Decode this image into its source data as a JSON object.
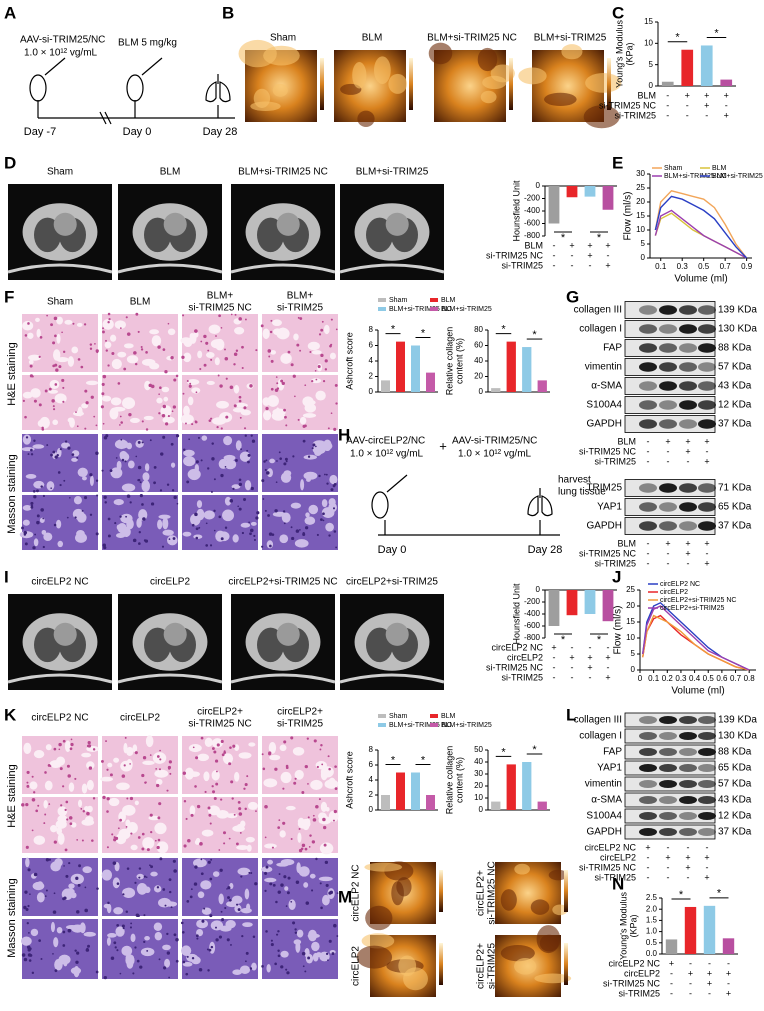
{
  "panel_labels": [
    "A",
    "B",
    "C",
    "D",
    "E",
    "F",
    "G",
    "H",
    "I",
    "J",
    "K",
    "L",
    "M",
    "N"
  ],
  "A": {
    "vector": "AAV-si-TRIM25/NC",
    "dose": "1.0 × 10¹² vg/mL",
    "drug": "BLM 5 mg/kg",
    "days": [
      "Day -7",
      "Day 0",
      "Day 28"
    ]
  },
  "B": {
    "groups": [
      "Sham",
      "BLM",
      "BLM+si-TRIM25 NC",
      "BLM+si-TRIM25"
    ]
  },
  "D": {
    "groups": [
      "Sham",
      "BLM",
      "BLM+si-TRIM25 NC",
      "BLM+si-TRIM25"
    ]
  },
  "F": {
    "columns": [
      [
        "Sham"
      ],
      [
        "BLM"
      ],
      [
        "BLM+",
        "si-TRIM25 NC"
      ],
      [
        "BLM+",
        "si-TRIM25"
      ]
    ],
    "rows": [
      "H&E staining",
      "Masson staining"
    ]
  },
  "H": {
    "vector1": "AAV-circELP2/NC",
    "plus": "+",
    "vector2": "AAV-si-TRIM25/NC",
    "dose1": "1.0 × 10¹² vg/mL",
    "dose2": "1.0 × 10¹² vg/mL",
    "harvest": [
      "harvest",
      "lung tissue"
    ],
    "days": [
      "Day 0",
      "Day 28"
    ]
  },
  "I": {
    "groups": [
      "circELP2 NC",
      "circELP2",
      "circELP2+si-TRIM25 NC",
      "circELP2+si-TRIM25"
    ]
  },
  "K": {
    "columns": [
      [
        "circELP2 NC"
      ],
      [
        "circELP2"
      ],
      [
        "circELP2+",
        "si-TRIM25 NC"
      ],
      [
        "circELP2+",
        "si-TRIM25"
      ]
    ],
    "rows": [
      "H&E staining",
      "Masson staining"
    ]
  },
  "M": {
    "labels": [
      [
        "circELP2 NC"
      ],
      [
        "circELP2"
      ],
      [
        "circELP2+",
        "si-TRIM25 NC"
      ],
      [
        "circELP2+",
        "si-TRIM25"
      ]
    ]
  },
  "charts": {
    "C": {
      "type": "bar",
      "ylabel": [
        "Young's Modulus",
        "(KPa)"
      ],
      "values": [
        1,
        8.5,
        9.5,
        1.5
      ],
      "colors": [
        "#9e9e9e",
        "#e8262a",
        "#8ecae6",
        "#b84fa0"
      ],
      "ylim": [
        0,
        15
      ],
      "yticks": [
        0,
        5,
        10,
        15
      ],
      "significance": [
        "*",
        "*"
      ],
      "conditions": [
        {
          "name": "BLM",
          "marks": [
            "-",
            "+",
            "+",
            "+"
          ]
        },
        {
          "name": "si-TRIM25 NC",
          "marks": [
            "-",
            "-",
            "+",
            "-"
          ]
        },
        {
          "name": "si-TRIM25",
          "marks": [
            "-",
            "-",
            "-",
            "+"
          ]
        }
      ]
    },
    "D": {
      "type": "bar",
      "ylabel": [
        "Hounsfield Unit"
      ],
      "values": [
        -600,
        -180,
        -170,
        -380
      ],
      "colors": [
        "#9e9e9e",
        "#e8262a",
        "#8ecae6",
        "#b84fa0"
      ],
      "ylim": [
        -800,
        0
      ],
      "yticks": [
        -800,
        -600,
        -400,
        -200,
        0
      ],
      "significance": [
        "*",
        "*"
      ],
      "conditions": [
        {
          "name": "BLM",
          "marks": [
            "-",
            "+",
            "+",
            "+"
          ]
        },
        {
          "name": "si-TRIM25 NC",
          "marks": [
            "-",
            "-",
            "+",
            "-"
          ]
        },
        {
          "name": "si-TRIM25",
          "marks": [
            "-",
            "-",
            "-",
            "+"
          ]
        }
      ]
    },
    "E": {
      "type": "line",
      "ylabel": "Flow (ml/s)",
      "xlabel": "Volume (ml)",
      "xlim": [
        0,
        0.95
      ],
      "ylim": [
        0,
        30
      ],
      "xticks": [
        0.1,
        0.3,
        0.5,
        0.7,
        0.9
      ],
      "yticks": [
        0,
        5,
        10,
        15,
        20,
        25,
        30
      ],
      "x": [
        0.05,
        0.1,
        0.2,
        0.3,
        0.4,
        0.5,
        0.6,
        0.7,
        0.8,
        0.9
      ],
      "series": [
        {
          "name": "Sham",
          "color": "#f2a65a",
          "values": [
            10,
            20,
            24,
            23,
            22,
            21,
            18,
            12,
            5,
            0
          ]
        },
        {
          "name": "BLM",
          "color": "#d8c23a",
          "values": [
            8,
            14,
            16,
            13,
            10,
            8,
            6,
            4,
            2,
            0
          ]
        },
        {
          "name": "BLM+si-TRIM25 NC",
          "color": "#9b3fb0",
          "values": [
            8,
            15,
            17,
            14,
            11,
            8,
            6,
            4,
            2,
            0
          ]
        },
        {
          "name": "BLM+si-TRIM25",
          "color": "#2a3fc4",
          "values": [
            10,
            18,
            22,
            21,
            19,
            17,
            14,
            9,
            4,
            0
          ]
        }
      ]
    },
    "F1": {
      "type": "bar",
      "ylabel": [
        "Ashcroft score"
      ],
      "values": [
        1.5,
        6.5,
        6,
        2.5
      ],
      "colors": [
        "#bdbdbd",
        "#e8262a",
        "#8ecae6",
        "#c45aa8"
      ],
      "ylim": [
        0,
        8
      ],
      "yticks": [
        0,
        2,
        4,
        6,
        8
      ],
      "significance": [
        "*",
        "*"
      ],
      "legend": [
        "Sham",
        "BLM",
        "BLM+si-TRIM25 NC",
        "BLM+si-TRIM25"
      ]
    },
    "F2": {
      "type": "bar",
      "ylabel": [
        "Relative collagen",
        "content (%)"
      ],
      "values": [
        5,
        65,
        58,
        15
      ],
      "colors": [
        "#bdbdbd",
        "#e8262a",
        "#8ecae6",
        "#c45aa8"
      ],
      "ylim": [
        0,
        80
      ],
      "yticks": [
        0,
        20,
        40,
        60,
        80
      ],
      "significance": [
        "*",
        "*"
      ]
    },
    "I": {
      "type": "bar",
      "ylabel": [
        "Hounsfield Unit"
      ],
      "values": [
        -600,
        -420,
        -400,
        -520
      ],
      "colors": [
        "#9e9e9e",
        "#e8262a",
        "#8ecae6",
        "#b84fa0"
      ],
      "ylim": [
        -800,
        0
      ],
      "yticks": [
        -800,
        -600,
        -400,
        -200,
        0
      ],
      "significance": [
        "*",
        "*"
      ],
      "conditions": [
        {
          "name": "circELP2 NC",
          "marks": [
            "+",
            "-",
            "-",
            "-"
          ]
        },
        {
          "name": "circELP2",
          "marks": [
            "-",
            "+",
            "+",
            "+"
          ]
        },
        {
          "name": "si-TRIM25 NC",
          "marks": [
            "-",
            "-",
            "+",
            "-"
          ]
        },
        {
          "name": "si-TRIM25",
          "marks": [
            "-",
            "-",
            "-",
            "+"
          ]
        }
      ]
    },
    "J": {
      "type": "line",
      "ylabel": "Flow (ml/s)",
      "xlabel": "Volume (ml)",
      "xlim": [
        0,
        0.85
      ],
      "ylim": [
        0,
        25
      ],
      "xticks": [
        0,
        0.1,
        0.2,
        0.3,
        0.4,
        0.5,
        0.6,
        0.7,
        0.8
      ],
      "yticks": [
        0,
        5,
        10,
        15,
        20,
        25
      ],
      "x": [
        0.02,
        0.05,
        0.1,
        0.15,
        0.2,
        0.3,
        0.4,
        0.5,
        0.6,
        0.7,
        0.8
      ],
      "series": [
        {
          "name": "circELP2 NC",
          "color": "#2a3fc4",
          "values": [
            5,
            15,
            20,
            21,
            19,
            15,
            11,
            7,
            4,
            2,
            0
          ]
        },
        {
          "name": "circELP2",
          "color": "#e8262a",
          "values": [
            4,
            12,
            16,
            17,
            15,
            11,
            8,
            5,
            3,
            1,
            0
          ]
        },
        {
          "name": "circELP2+si-TRIM25 NC",
          "color": "#f29a3a",
          "values": [
            4,
            12,
            17,
            16,
            15,
            12,
            8,
            5,
            3,
            1,
            0
          ]
        },
        {
          "name": "circELP2+si-TRIM25",
          "color": "#9b3fb0",
          "values": [
            5,
            14,
            19,
            20,
            18,
            14,
            10,
            6,
            4,
            2,
            0
          ]
        }
      ]
    },
    "K1": {
      "type": "bar",
      "ylabel": [
        "Ashcroft score"
      ],
      "values": [
        2,
        5,
        5,
        2
      ],
      "colors": [
        "#bdbdbd",
        "#e8262a",
        "#8ecae6",
        "#c45aa8"
      ],
      "ylim": [
        0,
        8
      ],
      "yticks": [
        0,
        2,
        4,
        6,
        8
      ],
      "significance": [
        "*",
        "*"
      ],
      "legend": [
        "Sham",
        "BLM",
        "BLM+si-TRIM25 NC",
        "BLM+si-TRIM25"
      ]
    },
    "K2": {
      "type": "bar",
      "ylabel": [
        "Relative collagen",
        "content (%)"
      ],
      "values": [
        7,
        38,
        40,
        7
      ],
      "colors": [
        "#bdbdbd",
        "#e8262a",
        "#8ecae6",
        "#c45aa8"
      ],
      "ylim": [
        0,
        50
      ],
      "yticks": [
        0,
        10,
        20,
        30,
        40,
        50
      ],
      "significance": [
        "*",
        "*"
      ]
    },
    "N": {
      "type": "bar",
      "ylabel": [
        "Young's Modulus",
        "(KPa)"
      ],
      "values": [
        0.65,
        2.1,
        2.15,
        0.7
      ],
      "colors": [
        "#9e9e9e",
        "#e8262a",
        "#8ecae6",
        "#b84fa0"
      ],
      "ylim": [
        0,
        2.5
      ],
      "yticks": [
        {
          "value": 0,
          "label": "0.0"
        },
        {
          "value": 0.5,
          "label": "0.5"
        },
        {
          "value": 1,
          "label": "1.0"
        },
        {
          "value": 1.5,
          "label": "1.5"
        },
        {
          "value": 2,
          "label": "2.0"
        },
        {
          "value": 2.5,
          "label": "2.5"
        }
      ],
      "significance": [
        "*",
        "*"
      ],
      "conditions": [
        {
          "name": "circELP2 NC",
          "marks": [
            "+",
            "-",
            "-",
            "-"
          ]
        },
        {
          "name": "circELP2",
          "marks": [
            "-",
            "+",
            "+",
            "+"
          ]
        },
        {
          "name": "si-TRIM25 NC",
          "marks": [
            "-",
            "-",
            "+",
            "-"
          ]
        },
        {
          "name": "si-TRIM25",
          "marks": [
            "-",
            "-",
            "-",
            "+"
          ]
        }
      ]
    }
  },
  "blots": {
    "G1": {
      "rows": [
        {
          "protein": "collagen III",
          "size": "139 KDa"
        },
        {
          "protein": "collagen I",
          "size": "130 KDa"
        },
        {
          "protein": "FAP",
          "size": "88 KDa"
        },
        {
          "protein": "vimentin",
          "size": "57 KDa"
        },
        {
          "protein": "α-SMA",
          "size": "43 KDa"
        },
        {
          "protein": "S100A4",
          "size": "12 KDa"
        },
        {
          "protein": "GAPDH",
          "size": "37 KDa"
        }
      ],
      "conditions": [
        {
          "name": "BLM",
          "marks": [
            "-",
            "+",
            "+",
            "+"
          ]
        },
        {
          "name": "si-TRIM25 NC",
          "marks": [
            "-",
            "-",
            "+",
            "-"
          ]
        },
        {
          "name": "si-TRIM25",
          "marks": [
            "-",
            "-",
            "-",
            "+"
          ]
        }
      ]
    },
    "G2": {
      "rows": [
        {
          "protein": "TRIM25",
          "size": "71 KDa"
        },
        {
          "protein": "YAP1",
          "size": "65 KDa"
        },
        {
          "protein": "GAPDH",
          "size": "37 KDa"
        }
      ],
      "conditions": [
        {
          "name": "BLM",
          "marks": [
            "-",
            "+",
            "+",
            "+"
          ]
        },
        {
          "name": "si-TRIM25 NC",
          "marks": [
            "-",
            "-",
            "+",
            "-"
          ]
        },
        {
          "name": "si-TRIM25",
          "marks": [
            "-",
            "-",
            "-",
            "+"
          ]
        }
      ]
    },
    "L": {
      "rows": [
        {
          "protein": "collagen III",
          "size": "139 KDa"
        },
        {
          "protein": "collagen I",
          "size": "130 KDa"
        },
        {
          "protein": "FAP",
          "size": "88 KDa"
        },
        {
          "protein": "YAP1",
          "size": "65 KDa"
        },
        {
          "protein": "vimentin",
          "size": "57 KDa"
        },
        {
          "protein": "α-SMA",
          "size": "43 KDa"
        },
        {
          "protein": "S100A4",
          "size": "12 KDa"
        },
        {
          "protein": "GAPDH",
          "size": "37 KDa"
        }
      ],
      "conditions": [
        {
          "name": "circELP2 NC",
          "marks": [
            "+",
            "-",
            "-",
            "-"
          ]
        },
        {
          "name": "circELP2",
          "marks": [
            "-",
            "+",
            "+",
            "+"
          ]
        },
        {
          "name": "si-TRIM25 NC",
          "marks": [
            "-",
            "-",
            "+",
            "-"
          ]
        },
        {
          "name": "si-TRIM25",
          "marks": [
            "-",
            "-",
            "-",
            "+"
          ]
        }
      ]
    }
  }
}
